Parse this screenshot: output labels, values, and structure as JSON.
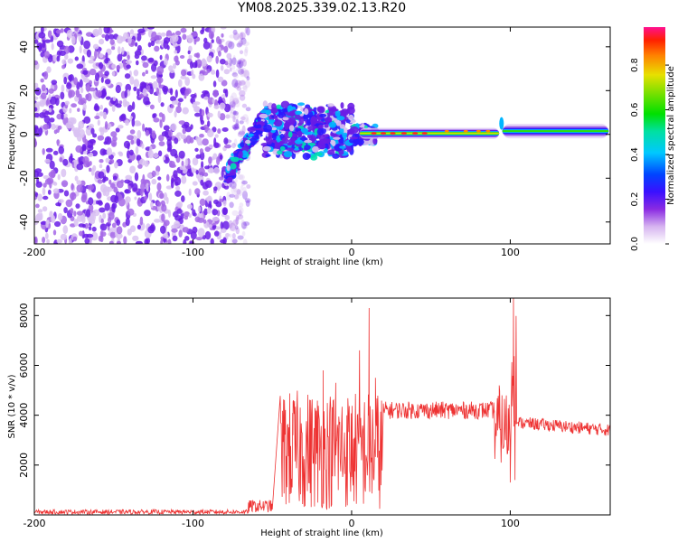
{
  "title": "YM08.2025.339.02.13.R20",
  "chart_data": [
    {
      "type": "heatmap",
      "xlabel": "Height of straight line (km)",
      "ylabel": "Frequency (Hz)",
      "xlim": [
        -200,
        163
      ],
      "ylim": [
        -50,
        49
      ],
      "xticks": [
        -200,
        -100,
        0,
        100
      ],
      "yticks": [
        -40,
        -20,
        0,
        20,
        40
      ],
      "colorbar": {
        "label": "Normalized spectral amplitude",
        "range": [
          0.0,
          0.97
        ],
        "ticks": [
          0.0,
          0.2,
          0.4,
          0.6,
          0.8
        ],
        "tick_labels": [
          "0.0",
          "0.2",
          "0.4",
          "0.6",
          "0.8"
        ]
      },
      "features": [
        {
          "name": "noise-region",
          "x_range": [
            -200,
            -73
          ],
          "freq_range": [
            -50,
            49
          ],
          "amplitude": 0.12
        },
        {
          "name": "turbulent-band",
          "x_range": [
            -78,
            15
          ],
          "freq_range": [
            -25,
            13
          ],
          "amplitude": 0.3
        },
        {
          "name": "steady-tone-lower",
          "x_range": [
            5,
            93
          ],
          "freq": 0.5,
          "amplitude": 0.75
        },
        {
          "name": "steady-tone-upper",
          "x_range": [
            95,
            162
          ],
          "freq": 1.5,
          "amplitude": 0.5
        }
      ]
    },
    {
      "type": "line",
      "xlabel": "Height of straight line (km)",
      "ylabel": "SNR (10 * v/v)",
      "xlim": [
        -200,
        163
      ],
      "ylim": [
        0,
        8700
      ],
      "xticks": [
        -200,
        -100,
        0,
        100
      ],
      "yticks": [
        2000,
        4000,
        6000,
        8000
      ],
      "series": [
        {
          "name": "SNR",
          "color": "#ee3333",
          "segments": [
            {
              "x_range": [
                -200,
                -65
              ],
              "level": 120,
              "noise": 90
            },
            {
              "x_range": [
                -65,
                -50
              ],
              "level": 350,
              "noise": 250
            },
            {
              "x_range": [
                -45,
                20
              ],
              "level": 2600,
              "noise": 2400,
              "spikes": [
                [
                  -37,
                  3200
                ],
                [
                  -18,
                  5800
                ],
                [
                  -10,
                  5300
                ],
                [
                  5,
                  6600
                ],
                [
                  11,
                  8300
                ],
                [
                  15,
                  5500
                ]
              ]
            },
            {
              "x_range": [
                20,
                90
              ],
              "level": 4200,
              "noise": 350
            },
            {
              "x_range": [
                90,
                100
              ],
              "level": 3500,
              "noise": 1500,
              "spikes": [
                [
                  93,
                  5200
                ],
                [
                  97,
                  3000
                ],
                [
                  100,
                  1300
                ]
              ]
            },
            {
              "x_range": [
                101,
                104
              ],
              "level": 6000,
              "noise": 2500,
              "spikes": [
                [
                  102,
                  8700
                ],
                [
                  103,
                  1400
                ]
              ]
            },
            {
              "x_range": [
                105,
                163
              ],
              "level": 3700,
              "noise": 250,
              "trend_end": 3400
            }
          ]
        }
      ]
    }
  ]
}
